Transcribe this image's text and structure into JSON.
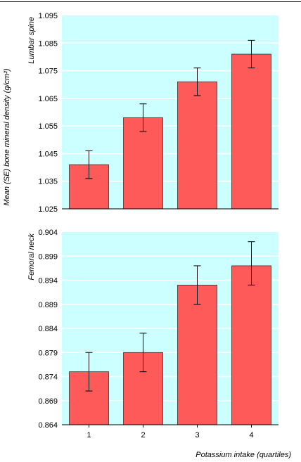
{
  "figure": {
    "ylabel": "Mean (SE) bone mineral density (g/cm²)",
    "xlabel": "Potassium intake (quartiles)",
    "bar_color": "#ff5a5a",
    "panel_bg": "#ccffff",
    "grid_color": "#ffffff"
  },
  "chart_data": [
    {
      "type": "bar",
      "title": "Lumbar spine",
      "categories": [
        "1",
        "2",
        "3",
        "4"
      ],
      "values": [
        1.041,
        1.058,
        1.071,
        1.081
      ],
      "error_low": [
        1.036,
        1.053,
        1.066,
        1.076
      ],
      "error_high": [
        1.046,
        1.063,
        1.076,
        1.086
      ],
      "ylim": [
        1.025,
        1.095
      ],
      "yticks": [
        "1.025",
        "1.035",
        "1.045",
        "1.055",
        "1.065",
        "1.075",
        "1.085",
        "1.095"
      ],
      "grid": true
    },
    {
      "type": "bar",
      "title": "Femoral neck",
      "categories": [
        "1",
        "2",
        "3",
        "4"
      ],
      "values": [
        0.875,
        0.879,
        0.893,
        0.897
      ],
      "error_low": [
        0.871,
        0.875,
        0.889,
        0.893
      ],
      "error_high": [
        0.879,
        0.883,
        0.897,
        0.902
      ],
      "ylim": [
        0.864,
        0.904
      ],
      "yticks": [
        "0.864",
        "0.869",
        "0.874",
        "0.879",
        "0.884",
        "0.889",
        "0.894",
        "0.899",
        "0.904"
      ],
      "grid": true
    }
  ]
}
